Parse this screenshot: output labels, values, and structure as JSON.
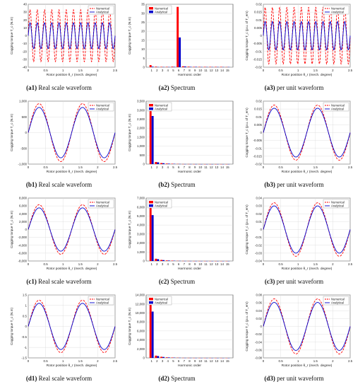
{
  "colors": {
    "numerical": "#ff0000",
    "analytical": "#0000cc",
    "grid": "#d9d9d9",
    "axis": "#333333"
  },
  "legend": {
    "numerical": "Numerical",
    "analytical": "Analytical"
  },
  "rows": [
    {
      "real": {
        "tag": "(a1)",
        "caption_text": " Real scale waveform",
        "ylabel": "Cogging torque T_c (N.m)",
        "xlabel": "Rotor position θ_r (mech. degree)",
        "yticks": [
          "-40",
          "-30",
          "-20",
          "-10",
          "0",
          "10",
          "20",
          "30",
          "40"
        ]
      },
      "spectrum": {
        "tag": "(a2)",
        "caption_text": " Spectrum",
        "ylabel": "Cogging torque T_c (N.m)",
        "xlabel": "Harmonic order",
        "yticks": [
          "0",
          "5",
          "10",
          "15",
          "20",
          "25",
          "30",
          "35"
        ]
      },
      "pu": {
        "tag": "(a3)",
        "caption_text": " per unit waveform",
        "ylabel": "Cogging torque T_c (p.u. of T_em)",
        "xlabel": "Rotor position θ_r (mech. degree)",
        "yticks": [
          "-0.02",
          "-0.015",
          "-0.01",
          "-0.005",
          "0",
          "0.005",
          "0.01",
          "0.015",
          "0.02"
        ]
      }
    },
    {
      "real": {
        "tag": "(b1)",
        "caption_text": " Real scale waveform",
        "ylabel": "Cogging torque T_c (N.m)",
        "xlabel": "Rotor position θ_r (mech. degree)",
        "yticks": [
          "-1,000",
          "-500",
          "0",
          "500",
          "1,000"
        ]
      },
      "spectrum": {
        "tag": "(b2)",
        "caption_text": " Spectrum",
        "ylabel": "Cogging torque T_c (N.m)",
        "xlabel": "Harmonic order",
        "yticks": [
          "0",
          "500",
          "1,000",
          "1,500",
          "2,000",
          "2,500",
          "3,000",
          "3,500"
        ]
      },
      "pu": {
        "tag": "(b3)",
        "caption_text": " per unit waveform",
        "ylabel": "Cogging torque T_c (p.u. of T_em)",
        "xlabel": "Rotor position θ_r (mech. degree)",
        "yticks": [
          "-0.02",
          "-0.015",
          "-0.01",
          "-0.005",
          "0",
          "0.005",
          "0.01",
          "0.015",
          "0.02"
        ]
      }
    },
    {
      "real": {
        "tag": "(c1)",
        "caption_text": " Real scale waveform",
        "ylabel": "Cogging torque T_c (N.m)",
        "xlabel": "Rotor position θ_r (mech. degree)",
        "yticks": [
          "-8,000",
          "-6,000",
          "-4,000",
          "-2,000",
          "0",
          "2,000",
          "4,000",
          "6,000",
          "8,000"
        ]
      },
      "spectrum": {
        "tag": "(c2)",
        "caption_text": " Spectrum",
        "ylabel": "Cogging torque T_c (N.m)",
        "xlabel": "Harmonic order",
        "yticks": [
          "0",
          "1,000",
          "2,000",
          "3,000",
          "4,000",
          "5,000",
          "6,000",
          "7,000"
        ]
      },
      "pu": {
        "tag": "(c3)",
        "caption_text": " per unit waveform",
        "ylabel": "Cogging torque T_c (p.u. of T_em)",
        "xlabel": "Rotor position θ_r (mech. degree)",
        "yticks": [
          "-0.04",
          "-0.03",
          "-0.02",
          "-0.01",
          "0",
          "0.01",
          "0.02",
          "0.03",
          "0.04"
        ]
      }
    },
    {
      "real": {
        "tag": "(d1)",
        "caption_text": " Real scale waveform",
        "ylabel": "Cogging torque T_c (N.m)",
        "xlabel": "Rotor position θ_r (mech. degree)",
        "yticks": [
          "-1.5",
          "-1",
          "-0.5",
          "0",
          "0.5",
          "1",
          "1.5"
        ]
      },
      "spectrum": {
        "tag": "(d2)",
        "caption_text": " Spectrum",
        "ylabel": "Cogging torque T_c (N.m)",
        "xlabel": "Harmonic order",
        "yticks": [
          "0",
          "2,000",
          "4,000",
          "6,000",
          "8,000",
          "10,000",
          "12,000",
          "14,000"
        ]
      },
      "pu": {
        "tag": "(d3)",
        "caption_text": " per unit waveform",
        "ylabel": "Cogging torque T_c (p.u. of T_em)",
        "xlabel": "Rotor position θ_r (mech. degree)",
        "yticks": [
          "-0.08",
          "-0.06",
          "-0.04",
          "-0.02",
          "0",
          "0.02",
          "0.04",
          "0.06",
          "0.08"
        ]
      }
    }
  ],
  "chart_data": [
    {
      "id": "a1",
      "type": "line",
      "x_ticks": [
        "0",
        "0.5",
        "1",
        "1.5",
        "2",
        "2.5"
      ],
      "xlim": [
        0,
        2.5
      ],
      "ylim": [
        -40,
        40
      ],
      "series": [
        {
          "name": "Numerical",
          "harmonic": 6,
          "amplitude": 33,
          "style": "dashed"
        },
        {
          "name": "Analytical",
          "harmonic": 6,
          "amplitude": 16.5,
          "style": "solid"
        }
      ]
    },
    {
      "id": "a2",
      "type": "bar",
      "categories": [
        "1",
        "2",
        "3",
        "4",
        "5",
        "6",
        "7",
        "8",
        "9",
        "10",
        "11",
        "12",
        "13",
        "14",
        "15"
      ],
      "ylim": [
        0,
        36
      ],
      "series": [
        {
          "name": "Numerical",
          "values": [
            1.2,
            0.3,
            0.2,
            0.2,
            0.3,
            34.5,
            0.5,
            0.3,
            0.2,
            0.2,
            0.2,
            0.2,
            0.2,
            0.2,
            0.1
          ]
        },
        {
          "name": "Analytical",
          "values": [
            0.3,
            0.1,
            0.1,
            0.1,
            0.2,
            17,
            0.4,
            0.2,
            0.2,
            0.1,
            0.1,
            0.1,
            0.1,
            0.1,
            0.1
          ]
        }
      ]
    },
    {
      "id": "a3",
      "type": "line",
      "x_ticks": [
        "0",
        "0.5",
        "1",
        "1.5",
        "2",
        "2.5"
      ],
      "xlim": [
        0,
        2.5
      ],
      "ylim": [
        -0.02,
        0.02
      ],
      "series": [
        {
          "name": "Numerical",
          "harmonic": 6,
          "amplitude": 0.018,
          "style": "dashed"
        },
        {
          "name": "Analytical",
          "harmonic": 6,
          "amplitude": 0.009,
          "style": "solid"
        }
      ]
    },
    {
      "id": "b1",
      "type": "line",
      "x_ticks": [
        "0",
        "0.5",
        "1",
        "1.5",
        "2",
        "2.5"
      ],
      "xlim": [
        0,
        2.5
      ],
      "ylim": [
        -1000,
        1000
      ],
      "series": [
        {
          "name": "Numerical",
          "harmonic": 1,
          "amplitude": 920,
          "style": "dashed"
        },
        {
          "name": "Analytical",
          "harmonic": 1,
          "amplitude": 800,
          "style": "solid"
        }
      ]
    },
    {
      "id": "b2",
      "type": "bar",
      "categories": [
        "1",
        "2",
        "3",
        "4",
        "5",
        "6",
        "7",
        "8",
        "9",
        "10",
        "11",
        "12",
        "13",
        "14",
        "15"
      ],
      "ylim": [
        0,
        3600
      ],
      "series": [
        {
          "name": "Numerical",
          "values": [
            3500,
            120,
            60,
            30,
            20,
            10,
            5,
            5,
            3,
            3,
            2,
            2,
            2,
            2,
            2
          ]
        },
        {
          "name": "Analytical",
          "values": [
            2750,
            100,
            50,
            25,
            15,
            8,
            4,
            4,
            3,
            2,
            2,
            2,
            2,
            2,
            2
          ]
        }
      ]
    },
    {
      "id": "b3",
      "type": "line",
      "x_ticks": [
        "0",
        "0.5",
        "1",
        "1.5",
        "2",
        "2.5"
      ],
      "xlim": [
        0,
        2.5
      ],
      "ylim": [
        -0.02,
        0.02
      ],
      "series": [
        {
          "name": "Numerical",
          "harmonic": 1,
          "amplitude": 0.0175,
          "style": "dashed"
        },
        {
          "name": "Analytical",
          "harmonic": 1,
          "amplitude": 0.0155,
          "style": "solid"
        }
      ]
    },
    {
      "id": "c1",
      "type": "line",
      "x_ticks": [
        "0",
        "0.5",
        "1",
        "1.5",
        "2",
        "2.5"
      ],
      "xlim": [
        0,
        2.5
      ],
      "ylim": [
        -8000,
        8000
      ],
      "series": [
        {
          "name": "Numerical",
          "harmonic": 1,
          "amplitude": 6300,
          "style": "dashed"
        },
        {
          "name": "Analytical",
          "harmonic": 1,
          "amplitude": 5500,
          "style": "solid"
        }
      ]
    },
    {
      "id": "c2",
      "type": "bar",
      "categories": [
        "1",
        "2",
        "3",
        "4",
        "5",
        "6",
        "7",
        "8",
        "9",
        "10",
        "11",
        "12",
        "13",
        "14",
        "15"
      ],
      "ylim": [
        0,
        7000
      ],
      "series": [
        {
          "name": "Numerical",
          "values": [
            6700,
            250,
            120,
            60,
            40,
            20,
            10,
            8,
            5,
            4,
            3,
            3,
            2,
            2,
            2
          ]
        },
        {
          "name": "Analytical",
          "values": [
            5100,
            200,
            100,
            50,
            30,
            15,
            8,
            6,
            4,
            3,
            3,
            2,
            2,
            2,
            2
          ]
        }
      ]
    },
    {
      "id": "c3",
      "type": "line",
      "x_ticks": [
        "0",
        "0.5",
        "1",
        "1.5",
        "2",
        "2.5"
      ],
      "xlim": [
        0,
        2.5
      ],
      "ylim": [
        -0.04,
        0.04
      ],
      "series": [
        {
          "name": "Numerical",
          "harmonic": 1,
          "amplitude": 0.034,
          "style": "dashed"
        },
        {
          "name": "Analytical",
          "harmonic": 1,
          "amplitude": 0.03,
          "style": "solid"
        }
      ]
    },
    {
      "id": "d1",
      "type": "line",
      "x_ticks": [
        "0",
        "0.5",
        "1",
        "1.5",
        "2",
        "2.5"
      ],
      "xlim": [
        0,
        2.5
      ],
      "ylim": [
        -1.5,
        1.5
      ],
      "series": [
        {
          "name": "Numerical",
          "harmonic": 1,
          "amplitude": 1.25,
          "style": "dashed"
        },
        {
          "name": "Analytical",
          "harmonic": 1,
          "amplitude": 1.1,
          "style": "solid"
        }
      ]
    },
    {
      "id": "d2",
      "type": "bar",
      "categories": [
        "1",
        "2",
        "3",
        "4",
        "5",
        "6",
        "7",
        "8",
        "9",
        "10",
        "11",
        "12",
        "13",
        "14",
        "15"
      ],
      "ylim": [
        0,
        14000
      ],
      "series": [
        {
          "name": "Numerical",
          "values": [
            12800,
            500,
            250,
            120,
            80,
            40,
            20,
            15,
            10,
            8,
            6,
            5,
            4,
            4,
            3
          ]
        },
        {
          "name": "Analytical",
          "values": [
            10300,
            400,
            200,
            100,
            60,
            30,
            15,
            12,
            8,
            6,
            5,
            4,
            3,
            3,
            3
          ]
        }
      ]
    },
    {
      "id": "d3",
      "type": "line",
      "x_ticks": [
        "0",
        "0.5",
        "1",
        "1.5",
        "2",
        "2.5"
      ],
      "xlim": [
        0,
        2.5
      ],
      "ylim": [
        -0.08,
        0.08
      ],
      "series": [
        {
          "name": "Numerical",
          "harmonic": 1,
          "amplitude": 0.07,
          "style": "dashed"
        },
        {
          "name": "Analytical",
          "harmonic": 1,
          "amplitude": 0.061,
          "style": "solid"
        }
      ]
    }
  ]
}
